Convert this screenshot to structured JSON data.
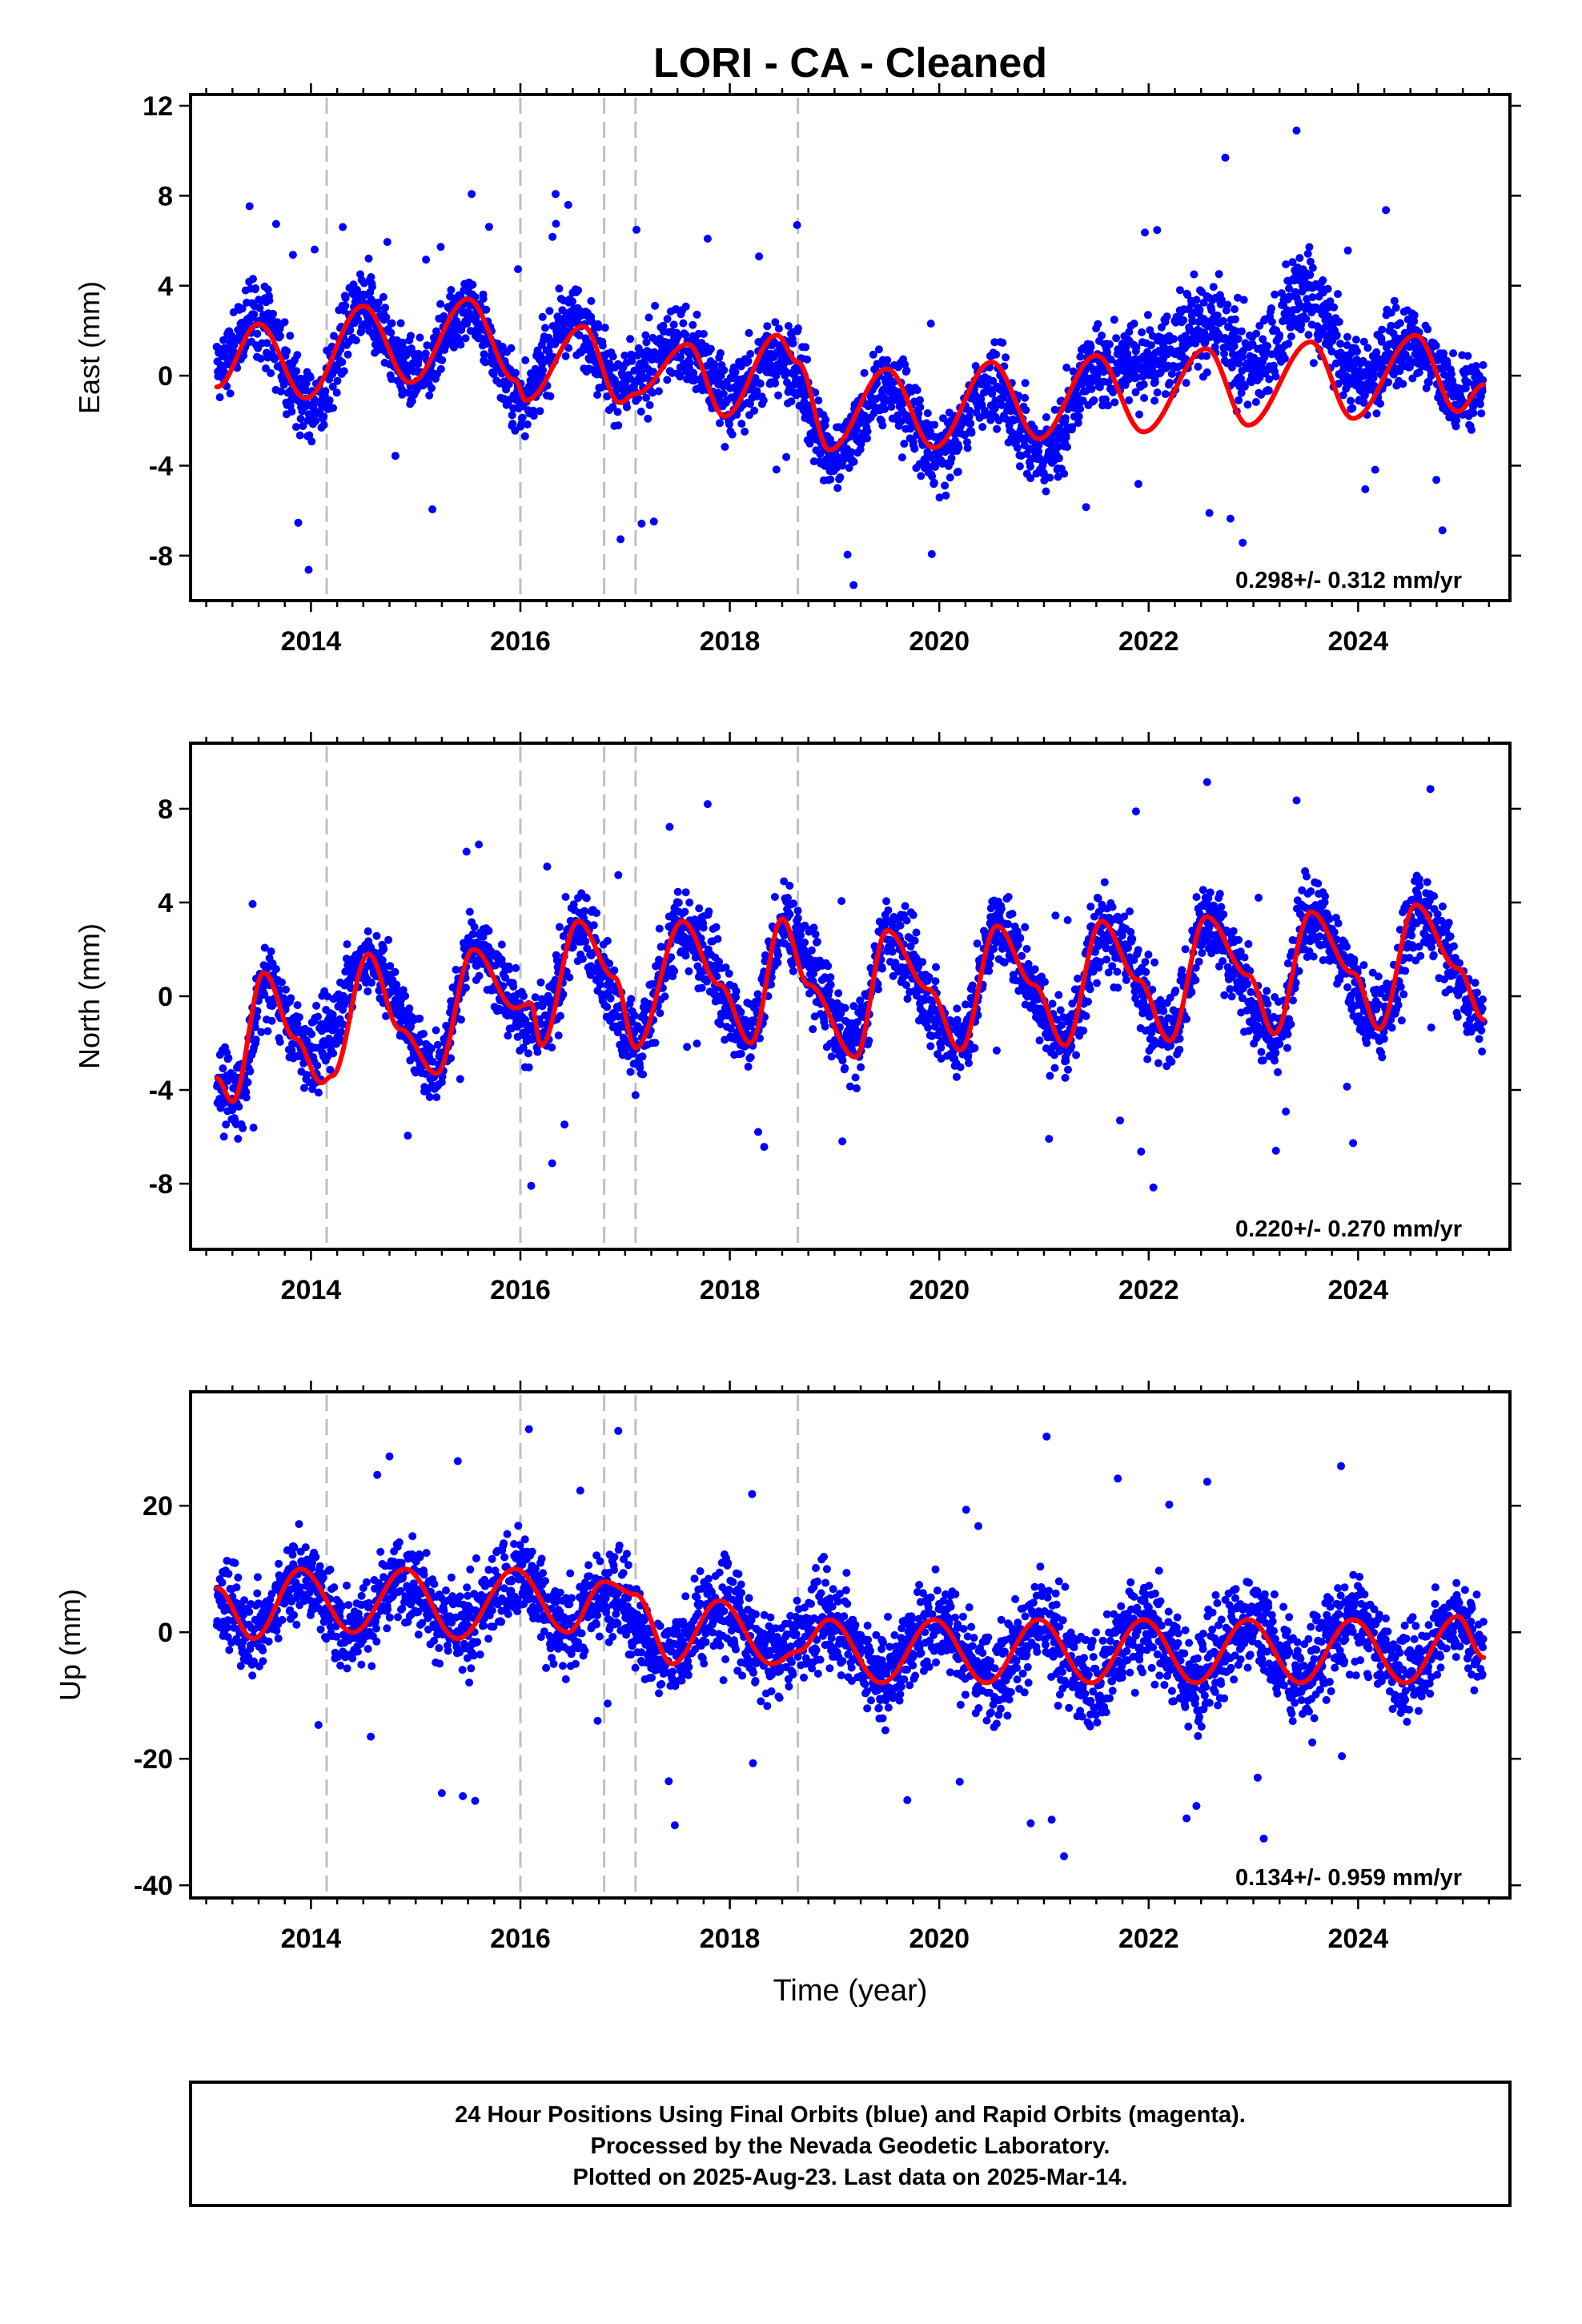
{
  "title": "LORI  - CA - Cleaned",
  "x_axis_label": "Time (year)",
  "footer": {
    "lines": [
      "24 Hour Positions Using Final Orbits (blue) and Rapid Orbits (magenta).",
      "Processed by the Nevada Geodetic Laboratory.",
      "Plotted on 2025-Aug-23. Last data on 2025-Mar-14."
    ]
  },
  "colors": {
    "points": "#0000ff",
    "model": "#ff0000",
    "event_lines": "#c0c0c0",
    "frame": "#000000"
  },
  "chart_data": [
    {
      "type": "scatter",
      "ylabel": "East (mm)",
      "rate_label": "0.298+/- 0.312 mm/yr",
      "xlim": [
        2012.85,
        2025.45
      ],
      "ylim": [
        -10,
        12.5
      ],
      "xticks": [
        "2014",
        "2016",
        "2018",
        "2020",
        "2022",
        "2024"
      ],
      "yticks": [
        "12",
        "8",
        "4",
        "0",
        "-4",
        "-8"
      ],
      "event_lines": [
        2014.15,
        2016.0,
        2016.8,
        2017.1,
        2018.65
      ],
      "model_curve": {
        "name": "",
        "x": [
          2013.1,
          2013.5,
          2013.95,
          2014.5,
          2014.95,
          2015.5,
          2015.95,
          2016.05,
          2016.6,
          2016.95,
          2017.1,
          2017.6,
          2017.95,
          2018.45,
          2018.65,
          2018.95,
          2019.5,
          2019.95,
          2020.5,
          2020.95,
          2021.5,
          2021.95,
          2022.55,
          2022.95,
          2023.55,
          2023.95,
          2024.55,
          2024.95,
          2025.2
        ],
        "values": [
          -0.5,
          2.3,
          -1.0,
          3.1,
          -0.3,
          3.4,
          -0.2,
          -1.1,
          2.2,
          -1.2,
          -0.8,
          1.4,
          -1.8,
          1.8,
          0.6,
          -3.3,
          0.3,
          -3.2,
          0.6,
          -2.8,
          0.9,
          -2.5,
          1.2,
          -2.2,
          1.5,
          -1.9,
          1.8,
          -1.6,
          -0.4
        ]
      },
      "point_cloud": [
        {
          "x": 2013.1,
          "center": 0.5,
          "spread": 3.5
        },
        {
          "x": 2013.5,
          "center": 2.5,
          "spread": 4.5
        },
        {
          "x": 2014.0,
          "center": -1.5,
          "spread": 4.5
        },
        {
          "x": 2014.5,
          "center": 3.0,
          "spread": 4.0
        },
        {
          "x": 2015.0,
          "center": 0.0,
          "spread": 3.5
        },
        {
          "x": 2015.5,
          "center": 3.0,
          "spread": 3.5
        },
        {
          "x": 2016.0,
          "center": -1.0,
          "spread": 3.5
        },
        {
          "x": 2016.5,
          "center": 2.5,
          "spread": 4.0
        },
        {
          "x": 2017.0,
          "center": -0.5,
          "spread": 4.0
        },
        {
          "x": 2017.5,
          "center": 1.5,
          "spread": 4.0
        },
        {
          "x": 2018.0,
          "center": -1.0,
          "spread": 4.0
        },
        {
          "x": 2018.5,
          "center": 1.0,
          "spread": 4.0
        },
        {
          "x": 2019.0,
          "center": -3.5,
          "spread": 4.0
        },
        {
          "x": 2019.5,
          "center": -0.5,
          "spread": 4.0
        },
        {
          "x": 2020.0,
          "center": -3.5,
          "spread": 4.0
        },
        {
          "x": 2020.5,
          "center": -0.5,
          "spread": 4.0
        },
        {
          "x": 2021.0,
          "center": -3.5,
          "spread": 4.5
        },
        {
          "x": 2021.5,
          "center": 0.5,
          "spread": 4.5
        },
        {
          "x": 2022.0,
          "center": 0.5,
          "spread": 4.5
        },
        {
          "x": 2022.5,
          "center": 2.5,
          "spread": 5.0
        },
        {
          "x": 2023.0,
          "center": 0.5,
          "spread": 4.5
        },
        {
          "x": 2023.5,
          "center": 3.5,
          "spread": 5.0
        },
        {
          "x": 2024.0,
          "center": 0.0,
          "spread": 4.0
        },
        {
          "x": 2024.5,
          "center": 1.5,
          "spread": 4.0
        },
        {
          "x": 2025.0,
          "center": -1.0,
          "spread": 4.0
        },
        {
          "x": 2025.2,
          "center": -0.5,
          "spread": 3.5
        }
      ]
    },
    {
      "type": "scatter",
      "ylabel": "North (mm)",
      "rate_label": "0.220+/- 0.270 mm/yr",
      "xlim": [
        2012.85,
        2025.45
      ],
      "ylim": [
        -10.8,
        10.8
      ],
      "xticks": [
        "2014",
        "2016",
        "2018",
        "2020",
        "2022",
        "2024"
      ],
      "yticks": [
        "8",
        "4",
        "0",
        "-4",
        "-8"
      ],
      "event_lines": [
        2014.15,
        2016.0,
        2016.8,
        2017.1,
        2018.65
      ],
      "model_curve": {
        "name": "",
        "x": [
          2013.1,
          2013.25,
          2013.55,
          2013.85,
          2014.1,
          2014.2,
          2014.55,
          2014.85,
          2015.2,
          2015.55,
          2015.95,
          2016.1,
          2016.2,
          2016.55,
          2016.9,
          2017.1,
          2017.55,
          2017.9,
          2018.2,
          2018.5,
          2018.75,
          2019.2,
          2019.5,
          2019.9,
          2020.2,
          2020.55,
          2020.9,
          2021.2,
          2021.55,
          2021.9,
          2022.2,
          2022.55,
          2022.95,
          2023.2,
          2023.55,
          2023.95,
          2024.2,
          2024.55,
          2024.95,
          2025.2
        ],
        "values": [
          -3.5,
          -4.5,
          1.0,
          -1.8,
          -3.7,
          -3.4,
          1.8,
          -1.4,
          -3.3,
          2.0,
          -0.5,
          -0.3,
          -2.1,
          3.2,
          0.8,
          -2.2,
          3.2,
          0.5,
          -2.0,
          3.3,
          0.5,
          -2.6,
          2.8,
          0.3,
          -2.3,
          3.0,
          0.5,
          -2.1,
          3.2,
          0.7,
          -1.9,
          3.4,
          0.9,
          -1.6,
          3.6,
          1.0,
          -1.4,
          3.9,
          1.2,
          -1.0
        ]
      },
      "point_cloud": [
        {
          "x": 2013.1,
          "center": -3.5,
          "spread": 3.5
        },
        {
          "x": 2013.3,
          "center": -4.5,
          "spread": 3.5
        },
        {
          "x": 2013.55,
          "center": 0.5,
          "spread": 4.0
        },
        {
          "x": 2014.0,
          "center": -2.5,
          "spread": 4.0
        },
        {
          "x": 2014.55,
          "center": 1.5,
          "spread": 3.5
        },
        {
          "x": 2015.2,
          "center": -3.0,
          "spread": 3.5
        },
        {
          "x": 2015.55,
          "center": 2.0,
          "spread": 3.5
        },
        {
          "x": 2016.2,
          "center": -1.5,
          "spread": 4.0
        },
        {
          "x": 2016.55,
          "center": 3.0,
          "spread": 4.0
        },
        {
          "x": 2017.1,
          "center": -2.0,
          "spread": 4.0
        },
        {
          "x": 2017.55,
          "center": 3.0,
          "spread": 4.0
        },
        {
          "x": 2018.2,
          "center": -1.5,
          "spread": 4.0
        },
        {
          "x": 2018.5,
          "center": 3.0,
          "spread": 4.0
        },
        {
          "x": 2019.2,
          "center": -2.0,
          "spread": 4.0
        },
        {
          "x": 2019.5,
          "center": 2.5,
          "spread": 4.0
        },
        {
          "x": 2020.2,
          "center": -2.0,
          "spread": 4.0
        },
        {
          "x": 2020.55,
          "center": 3.0,
          "spread": 4.0
        },
        {
          "x": 2021.2,
          "center": -2.0,
          "spread": 4.0
        },
        {
          "x": 2021.55,
          "center": 3.0,
          "spread": 4.5
        },
        {
          "x": 2022.2,
          "center": -1.5,
          "spread": 4.0
        },
        {
          "x": 2022.55,
          "center": 3.0,
          "spread": 4.0
        },
        {
          "x": 2023.2,
          "center": -1.5,
          "spread": 4.0
        },
        {
          "x": 2023.55,
          "center": 3.5,
          "spread": 4.0
        },
        {
          "x": 2024.2,
          "center": -1.0,
          "spread": 4.0
        },
        {
          "x": 2024.6,
          "center": 3.5,
          "spread": 4.0
        },
        {
          "x": 2025.2,
          "center": -1.0,
          "spread": 3.5
        }
      ]
    },
    {
      "type": "scatter",
      "ylabel": "Up (mm)",
      "rate_label": "0.134+/- 0.959 mm/yr",
      "xlim": [
        2012.85,
        2025.45
      ],
      "ylim": [
        -42,
        38
      ],
      "xticks": [
        "2014",
        "2016",
        "2018",
        "2020",
        "2022",
        "2024"
      ],
      "yticks": [
        "20",
        "0",
        "-20",
        "-40"
      ],
      "event_lines": [
        2014.15,
        2016.0,
        2016.8,
        2017.1,
        2018.65
      ],
      "model_curve": {
        "name": "",
        "x": [
          2013.1,
          2013.45,
          2013.9,
          2014.4,
          2014.9,
          2015.4,
          2015.95,
          2016.45,
          2016.8,
          2017.1,
          2017.45,
          2017.9,
          2018.4,
          2018.65,
          2018.95,
          2019.45,
          2019.95,
          2020.45,
          2020.95,
          2021.45,
          2021.95,
          2022.45,
          2022.95,
          2023.45,
          2023.95,
          2024.45,
          2024.95,
          2025.2
        ],
        "values": [
          7,
          -1,
          10,
          0,
          10,
          -1,
          10,
          0,
          8,
          6,
          -5,
          5,
          -5,
          -3,
          2,
          -8,
          2,
          -8,
          2,
          -8,
          2,
          -8,
          2,
          -8,
          2,
          -8,
          2.5,
          -4
        ]
      },
      "point_cloud": [
        {
          "x": 2013.1,
          "center": 5,
          "spread": 14
        },
        {
          "x": 2013.45,
          "center": 0,
          "spread": 16
        },
        {
          "x": 2013.9,
          "center": 9,
          "spread": 16
        },
        {
          "x": 2014.4,
          "center": 0,
          "spread": 16
        },
        {
          "x": 2014.9,
          "center": 9,
          "spread": 16
        },
        {
          "x": 2015.4,
          "center": 0,
          "spread": 16
        },
        {
          "x": 2015.95,
          "center": 9,
          "spread": 16
        },
        {
          "x": 2016.45,
          "center": 0,
          "spread": 16
        },
        {
          "x": 2016.8,
          "center": 7,
          "spread": 16
        },
        {
          "x": 2017.4,
          "center": -4,
          "spread": 16
        },
        {
          "x": 2017.9,
          "center": 4,
          "spread": 18
        },
        {
          "x": 2018.4,
          "center": -4,
          "spread": 16
        },
        {
          "x": 2018.95,
          "center": 2,
          "spread": 18
        },
        {
          "x": 2019.45,
          "center": -7,
          "spread": 18
        },
        {
          "x": 2019.95,
          "center": 2,
          "spread": 18
        },
        {
          "x": 2020.45,
          "center": -7,
          "spread": 18
        },
        {
          "x": 2020.95,
          "center": 1,
          "spread": 18
        },
        {
          "x": 2021.45,
          "center": -8,
          "spread": 18
        },
        {
          "x": 2021.95,
          "center": 1,
          "spread": 18
        },
        {
          "x": 2022.45,
          "center": -7,
          "spread": 18
        },
        {
          "x": 2022.95,
          "center": 2,
          "spread": 20
        },
        {
          "x": 2023.45,
          "center": -7,
          "spread": 18
        },
        {
          "x": 2023.95,
          "center": 2,
          "spread": 18
        },
        {
          "x": 2024.45,
          "center": -7,
          "spread": 16
        },
        {
          "x": 2024.95,
          "center": 2,
          "spread": 16
        },
        {
          "x": 2025.2,
          "center": -3,
          "spread": 16
        }
      ]
    }
  ]
}
